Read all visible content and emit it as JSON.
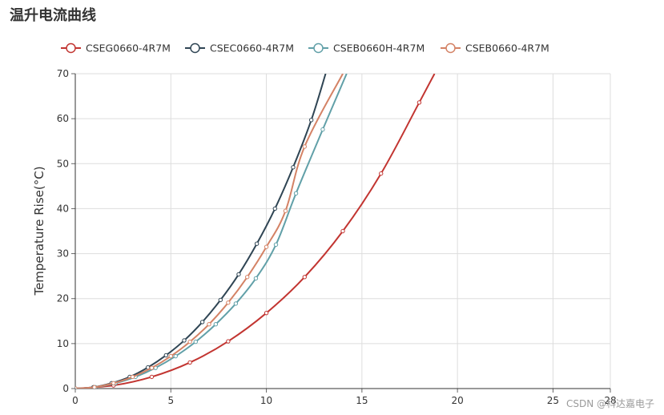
{
  "page": {
    "title": "温升电流曲线",
    "watermark": "CSDN @科达嘉电子"
  },
  "chart_data": {
    "type": "line",
    "title": "温升电流曲线",
    "xlabel": "",
    "ylabel": "Temperature Rise(°C)",
    "xlim": [
      0,
      28
    ],
    "ylim": [
      0,
      70
    ],
    "x_ticks": [
      "0",
      "5",
      "10",
      "15",
      "20",
      "25",
      "28"
    ],
    "y_ticks": [
      "0",
      "10",
      "20",
      "30",
      "40",
      "50",
      "60",
      "70"
    ],
    "grid": true,
    "legend_position": "top",
    "series": [
      {
        "name": "CSEG0660-4R7M",
        "color": "#c23531",
        "points": [
          [
            0,
            0
          ],
          [
            2,
            0.7
          ],
          [
            4,
            2.6
          ],
          [
            6,
            5.8
          ],
          [
            8,
            10.5
          ],
          [
            10,
            16.8
          ],
          [
            12,
            24.8
          ],
          [
            14,
            35
          ],
          [
            16,
            47.8
          ],
          [
            18,
            63.6
          ],
          [
            18.8,
            70
          ]
        ]
      },
      {
        "name": "CSEC0660-4R7M",
        "color": "#2f4554",
        "points": [
          [
            0,
            0
          ],
          [
            0.95,
            0.3
          ],
          [
            1.9,
            1.2
          ],
          [
            2.85,
            2.6
          ],
          [
            3.8,
            4.7
          ],
          [
            4.75,
            7.4
          ],
          [
            5.7,
            10.7
          ],
          [
            6.65,
            14.8
          ],
          [
            7.6,
            19.7
          ],
          [
            8.55,
            25.4
          ],
          [
            9.5,
            32.2
          ],
          [
            10.45,
            40
          ],
          [
            11.4,
            49.2
          ],
          [
            12.35,
            59.7
          ],
          [
            13.1,
            70
          ]
        ]
      },
      {
        "name": "CSEB0660H-4R7M",
        "color": "#61a0a8",
        "points": [
          [
            0,
            0
          ],
          [
            1.05,
            0.3
          ],
          [
            2.1,
            1.2
          ],
          [
            3.15,
            2.6
          ],
          [
            4.2,
            4.6
          ],
          [
            5.25,
            7.2
          ],
          [
            6.3,
            10.4
          ],
          [
            7.35,
            14.3
          ],
          [
            8.4,
            18.9
          ],
          [
            9.45,
            24.5
          ],
          [
            10.5,
            32
          ],
          [
            11.55,
            43.4
          ],
          [
            12.95,
            57.6
          ],
          [
            14.2,
            70
          ]
        ]
      },
      {
        "name": "CSEB0660-4R7M",
        "color": "#d48265",
        "points": [
          [
            0,
            0
          ],
          [
            1,
            0.3
          ],
          [
            2,
            1.2
          ],
          [
            3,
            2.6
          ],
          [
            4,
            4.6
          ],
          [
            5,
            7.2
          ],
          [
            6,
            10.4
          ],
          [
            7,
            14.3
          ],
          [
            8,
            19.1
          ],
          [
            9,
            24.8
          ],
          [
            10,
            31.5
          ],
          [
            11,
            39.5
          ],
          [
            12,
            53.8
          ],
          [
            14,
            70
          ]
        ]
      }
    ]
  }
}
